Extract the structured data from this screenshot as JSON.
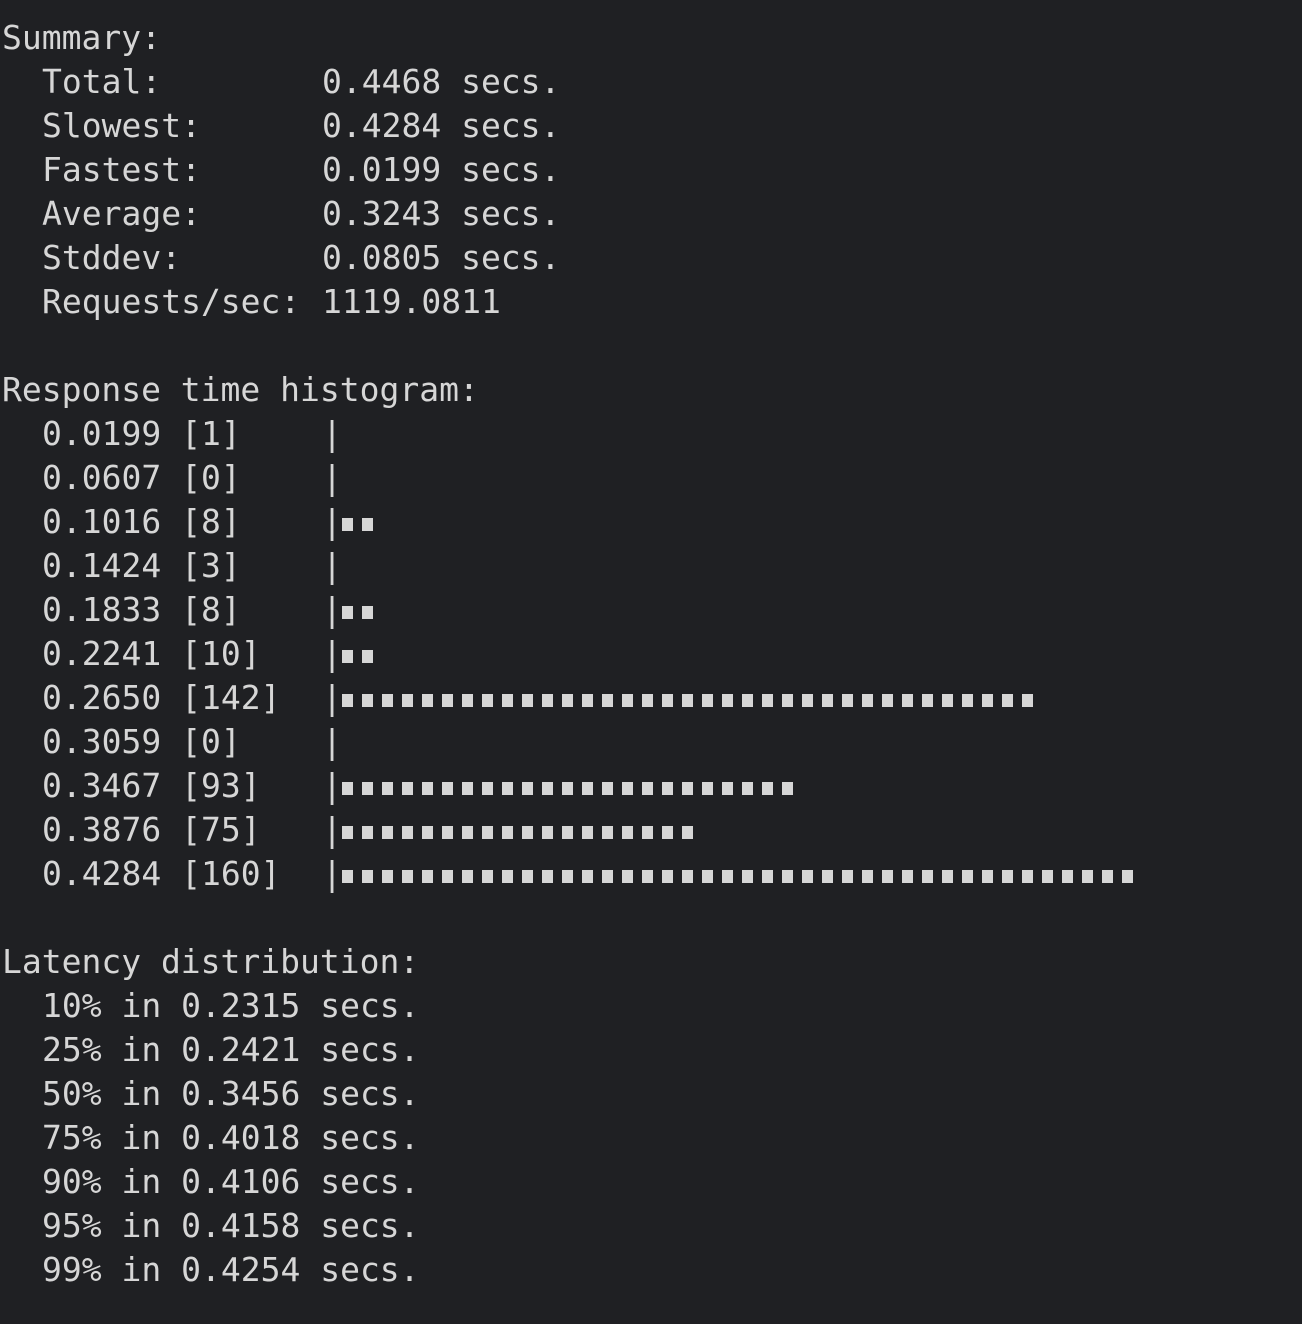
{
  "summary": {
    "heading": "Summary:",
    "rows": [
      {
        "label": "Total:",
        "value": "0.4468 secs."
      },
      {
        "label": "Slowest:",
        "value": "0.4284 secs."
      },
      {
        "label": "Fastest:",
        "value": "0.0199 secs."
      },
      {
        "label": "Average:",
        "value": "0.3243 secs."
      },
      {
        "label": "Stddev:",
        "value": "0.0805 secs."
      },
      {
        "label": "Requests/sec:",
        "value": "1119.0811"
      }
    ]
  },
  "histogram": {
    "heading": "Response time histogram:",
    "bar_char": "■",
    "max_blocks": 40,
    "rows": [
      {
        "mark": "0.0199",
        "count": 1
      },
      {
        "mark": "0.0607",
        "count": 0
      },
      {
        "mark": "0.1016",
        "count": 8
      },
      {
        "mark": "0.1424",
        "count": 3
      },
      {
        "mark": "0.1833",
        "count": 8
      },
      {
        "mark": "0.2241",
        "count": 10
      },
      {
        "mark": "0.2650",
        "count": 142
      },
      {
        "mark": "0.3059",
        "count": 0
      },
      {
        "mark": "0.3467",
        "count": 93
      },
      {
        "mark": "0.3876",
        "count": 75
      },
      {
        "mark": "0.4284",
        "count": 160
      }
    ]
  },
  "latency": {
    "heading": "Latency distribution:",
    "rows": [
      {
        "pct": "10%",
        "value": "0.2315"
      },
      {
        "pct": "25%",
        "value": "0.2421"
      },
      {
        "pct": "50%",
        "value": "0.3456"
      },
      {
        "pct": "75%",
        "value": "0.4018"
      },
      {
        "pct": "90%",
        "value": "0.4106"
      },
      {
        "pct": "95%",
        "value": "0.4158"
      },
      {
        "pct": "99%",
        "value": "0.4254"
      }
    ],
    "in_word": "in",
    "unit": "secs."
  },
  "colors": {
    "background": "#1f2023",
    "text": "#d6d6d6"
  }
}
